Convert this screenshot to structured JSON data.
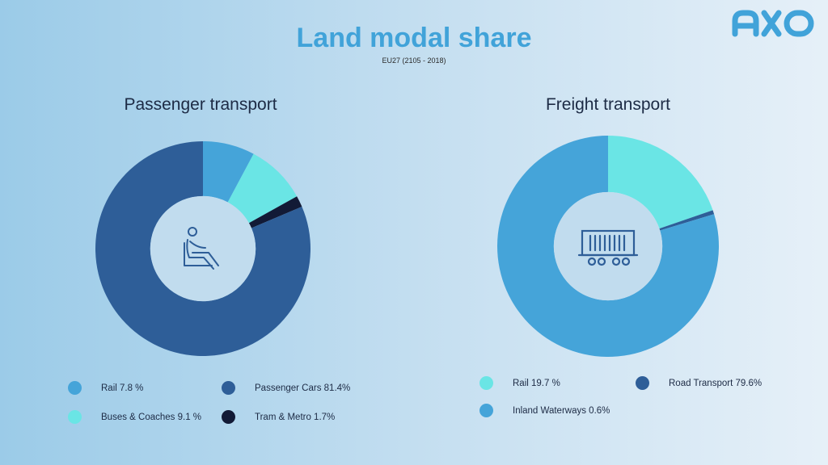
{
  "header": {
    "title": "Land modal share",
    "subtitle": "EU27 (2105 - 2018)"
  },
  "logo": {
    "icon": "axo-logo",
    "color": "#41a3d9"
  },
  "chart_data": [
    {
      "type": "pie",
      "title": "Passenger transport",
      "center_icon": "seated-person-icon",
      "slices": [
        {
          "label": "Rail 7.8 %",
          "value": 7.8,
          "color": "#45a4d9"
        },
        {
          "label": "Buses & Coaches 9.1 %",
          "value": 9.1,
          "color": "#6ae5e5"
        },
        {
          "label": "Tram & Metro 1.7%",
          "value": 1.7,
          "color": "#121a36"
        },
        {
          "label": "Passenger Cars 81.4%",
          "value": 81.4,
          "color": "#2e5e98"
        }
      ],
      "legend_placement": "bottom"
    },
    {
      "type": "pie",
      "title": "Freight transport",
      "center_icon": "freight-wagon-icon",
      "slices": [
        {
          "label": "Rail 19.7 %",
          "value": 19.7,
          "color": "#6ae5e5"
        },
        {
          "label": "Inland Waterways 0.6%",
          "value": 0.6,
          "color": "#2e5e98"
        },
        {
          "label": "Road Transport 79.6%",
          "value": 79.6,
          "color": "#45a4d9"
        }
      ],
      "legend": [
        {
          "label": "Rail 19.7 %",
          "color": "#6ae5e5"
        },
        {
          "label": "Road Transport 79.6%",
          "color": "#2e5e98"
        },
        {
          "label": "Inland Waterways 0.6%",
          "color": "#45a4d9"
        }
      ],
      "legend_placement": "bottom"
    }
  ]
}
